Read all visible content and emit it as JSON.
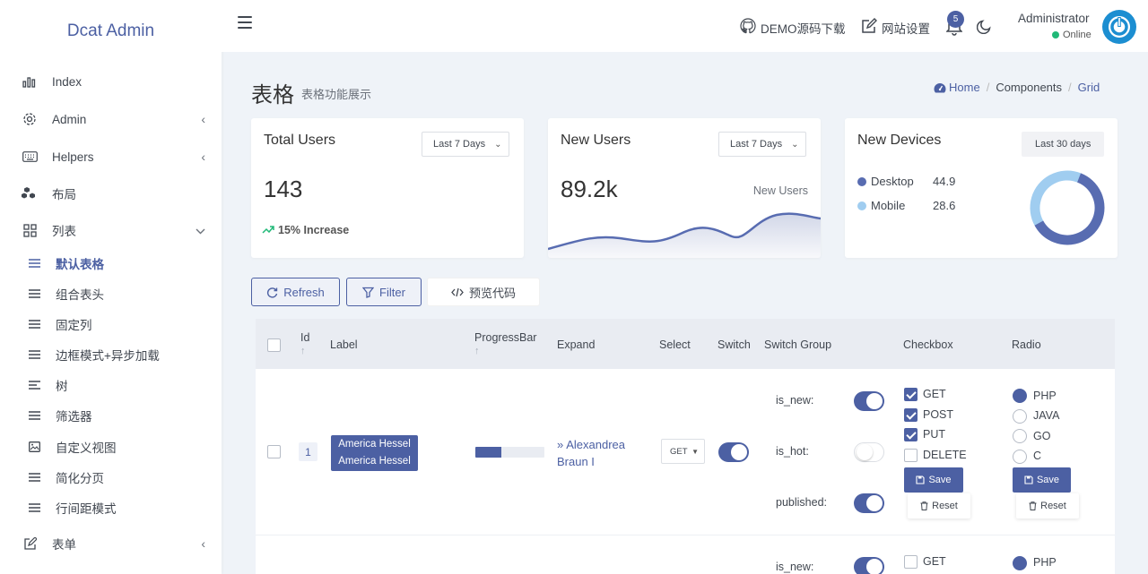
{
  "app": {
    "brand": "Dcat Admin"
  },
  "sidebar": {
    "items": [
      {
        "label": "Index",
        "icon": "bar-chart-icon",
        "arrow": ""
      },
      {
        "label": "Admin",
        "icon": "gear-icon",
        "arrow": "‹"
      },
      {
        "label": "Helpers",
        "icon": "keyboard-icon",
        "arrow": "‹"
      },
      {
        "label": "布局",
        "icon": "cubes-icon",
        "arrow": ""
      },
      {
        "label": "列表",
        "icon": "grid-icon",
        "arrow": "⌄"
      }
    ],
    "sub_items": [
      {
        "label": "默认表格",
        "active": true,
        "icon": "list-icon"
      },
      {
        "label": "组合表头",
        "active": false,
        "icon": "list-icon"
      },
      {
        "label": "固定列",
        "active": false,
        "icon": "list-icon"
      },
      {
        "label": "边框模式+异步加载",
        "active": false,
        "icon": "list-icon"
      },
      {
        "label": "树",
        "active": false,
        "icon": "align-left-icon"
      },
      {
        "label": "筛选器",
        "active": false,
        "icon": "list-icon"
      },
      {
        "label": "自定义视图",
        "active": false,
        "icon": "image-icon"
      },
      {
        "label": "简化分页",
        "active": false,
        "icon": "list-icon"
      },
      {
        "label": "行间距模式",
        "active": false,
        "icon": "list-icon"
      }
    ],
    "form_item": {
      "label": "表单",
      "icon": "edit-icon",
      "arrow": "‹"
    }
  },
  "header": {
    "demo_link": "DEMO源码下载",
    "settings_link": "网站设置",
    "notification_count": "5",
    "user_name": "Administrator",
    "user_status": "Online"
  },
  "page": {
    "title": "表格",
    "subtitle": "表格功能展示",
    "breadcrumb": [
      "Home",
      "Components",
      "Grid"
    ]
  },
  "cards": {
    "total_users": {
      "title": "Total Users",
      "range": "Last 7 Days",
      "value": "143",
      "trend": "15% Increase"
    },
    "new_users": {
      "title": "New Users",
      "range": "Last 7 Days",
      "value": "89.2k",
      "series_label": "New Users"
    },
    "new_devices": {
      "title": "New Devices",
      "range": "Last 30 days",
      "legend": [
        {
          "name": "Desktop",
          "value": "44.9",
          "color": "#586cb1"
        },
        {
          "name": "Mobile",
          "value": "28.6",
          "color": "#a0cdf0"
        }
      ]
    }
  },
  "toolbar": {
    "refresh": "Refresh",
    "filter": "Filter",
    "preview_code": "预览代码"
  },
  "grid": {
    "columns": [
      "Id",
      "Label",
      "ProgressBar",
      "Expand",
      "Select",
      "Switch",
      "Switch Group",
      "Checkbox",
      "Radio"
    ],
    "rows": [
      {
        "id": "1",
        "label": [
          "America Hessel",
          "America Hessel"
        ],
        "progress": 0.38,
        "expand": "Alexandrea Braun I",
        "select": "GET",
        "switch": true,
        "switch_group": [
          {
            "name": "is_new:",
            "on": true
          },
          {
            "name": "is_hot:",
            "on": false
          },
          {
            "name": "published:",
            "on": true
          }
        ],
        "checkbox": [
          {
            "label": "GET",
            "checked": true
          },
          {
            "label": "POST",
            "checked": true
          },
          {
            "label": "PUT",
            "checked": true
          },
          {
            "label": "DELETE",
            "checked": false
          }
        ],
        "radio": [
          {
            "label": "PHP",
            "checked": true
          },
          {
            "label": "JAVA",
            "checked": false
          },
          {
            "label": "GO",
            "checked": false
          },
          {
            "label": "C",
            "checked": false
          }
        ],
        "save_label": "Save",
        "reset_label": "Reset"
      },
      {
        "switch_group_first": "is_new:",
        "checkbox_first": "GET",
        "radio_first": "PHP"
      }
    ]
  },
  "colors": {
    "primary": "#4c60a3",
    "success": "#21b978",
    "background": "#eff3f8"
  }
}
